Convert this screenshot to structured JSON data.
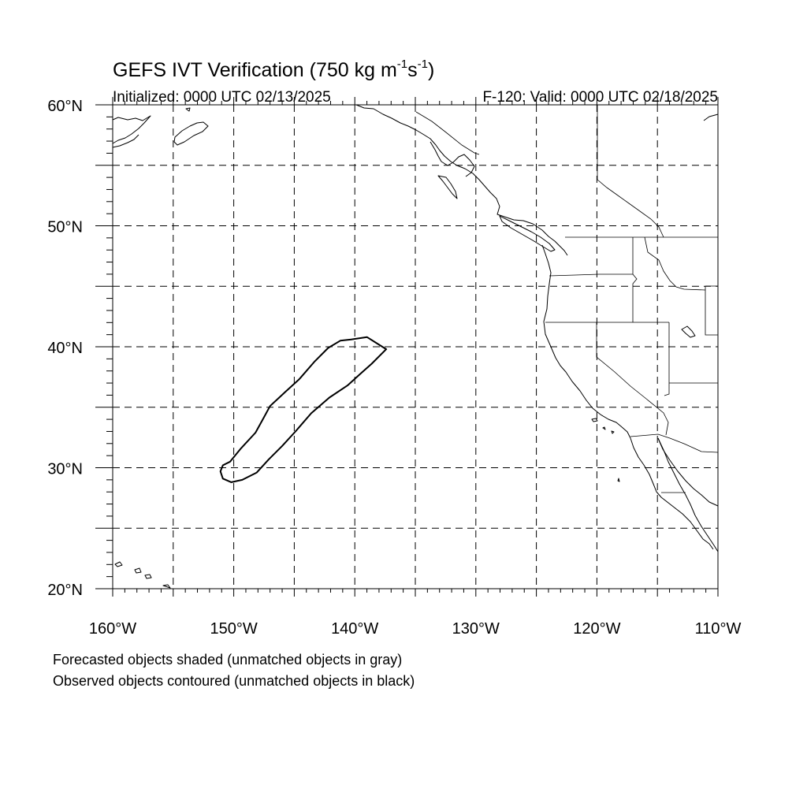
{
  "title": {
    "main": "GEFS IVT Verification (750 kg m",
    "sup1": "-1",
    "mid": "s",
    "sup2": "-1",
    "end": ")"
  },
  "initialized": "Initialized: 0000 UTC 02/13/2025",
  "valid": "F-120: Valid: 0000 UTC 02/18/2025",
  "map": {
    "lon_range": [
      -160,
      -110
    ],
    "lat_range": [
      20,
      60
    ],
    "grid_step_deg": 5,
    "grid_style": "dashed",
    "lon_labels": [
      {
        "lon": -160,
        "text": "160°W"
      },
      {
        "lon": -150,
        "text": "150°W"
      },
      {
        "lon": -140,
        "text": "140°W"
      },
      {
        "lon": -130,
        "text": "130°W"
      },
      {
        "lon": -120,
        "text": "120°W"
      },
      {
        "lon": -110,
        "text": "110°W"
      }
    ],
    "lat_labels": [
      {
        "lat": 60,
        "text": "60°N"
      },
      {
        "lat": 50,
        "text": "50°N"
      },
      {
        "lat": 40,
        "text": "40°N"
      },
      {
        "lat": 30,
        "text": "30°N"
      },
      {
        "lat": 20,
        "text": "20°N"
      }
    ],
    "objects": [
      {
        "kind": "observed",
        "matched": false,
        "outline": [
          [
            -137.4,
            39.8
          ],
          [
            -138.2,
            40.3
          ],
          [
            -139.0,
            40.8
          ],
          [
            -140.3,
            40.6
          ],
          [
            -141.2,
            40.5
          ],
          [
            -142.2,
            39.9
          ],
          [
            -143.3,
            38.8
          ],
          [
            -144.6,
            37.3
          ],
          [
            -145.7,
            36.3
          ],
          [
            -147.0,
            35.1
          ],
          [
            -147.6,
            34.0
          ],
          [
            -148.2,
            32.9
          ],
          [
            -149.4,
            31.6
          ],
          [
            -150.3,
            30.5
          ],
          [
            -150.9,
            30.2
          ],
          [
            -151.1,
            29.7
          ],
          [
            -150.9,
            29.1
          ],
          [
            -150.2,
            28.8
          ],
          [
            -149.3,
            29.0
          ],
          [
            -148.1,
            29.6
          ],
          [
            -147.1,
            30.7
          ],
          [
            -146.0,
            31.8
          ],
          [
            -144.9,
            33.0
          ],
          [
            -143.6,
            34.5
          ],
          [
            -142.1,
            35.8
          ],
          [
            -140.6,
            36.8
          ],
          [
            -139.5,
            37.8
          ],
          [
            -138.6,
            38.6
          ],
          [
            -137.4,
            39.8
          ]
        ]
      }
    ]
  },
  "legend_notes": [
    "Forecasted objects shaded (unmatched objects in gray)",
    "Observed objects contoured (unmatched objects in black)"
  ]
}
